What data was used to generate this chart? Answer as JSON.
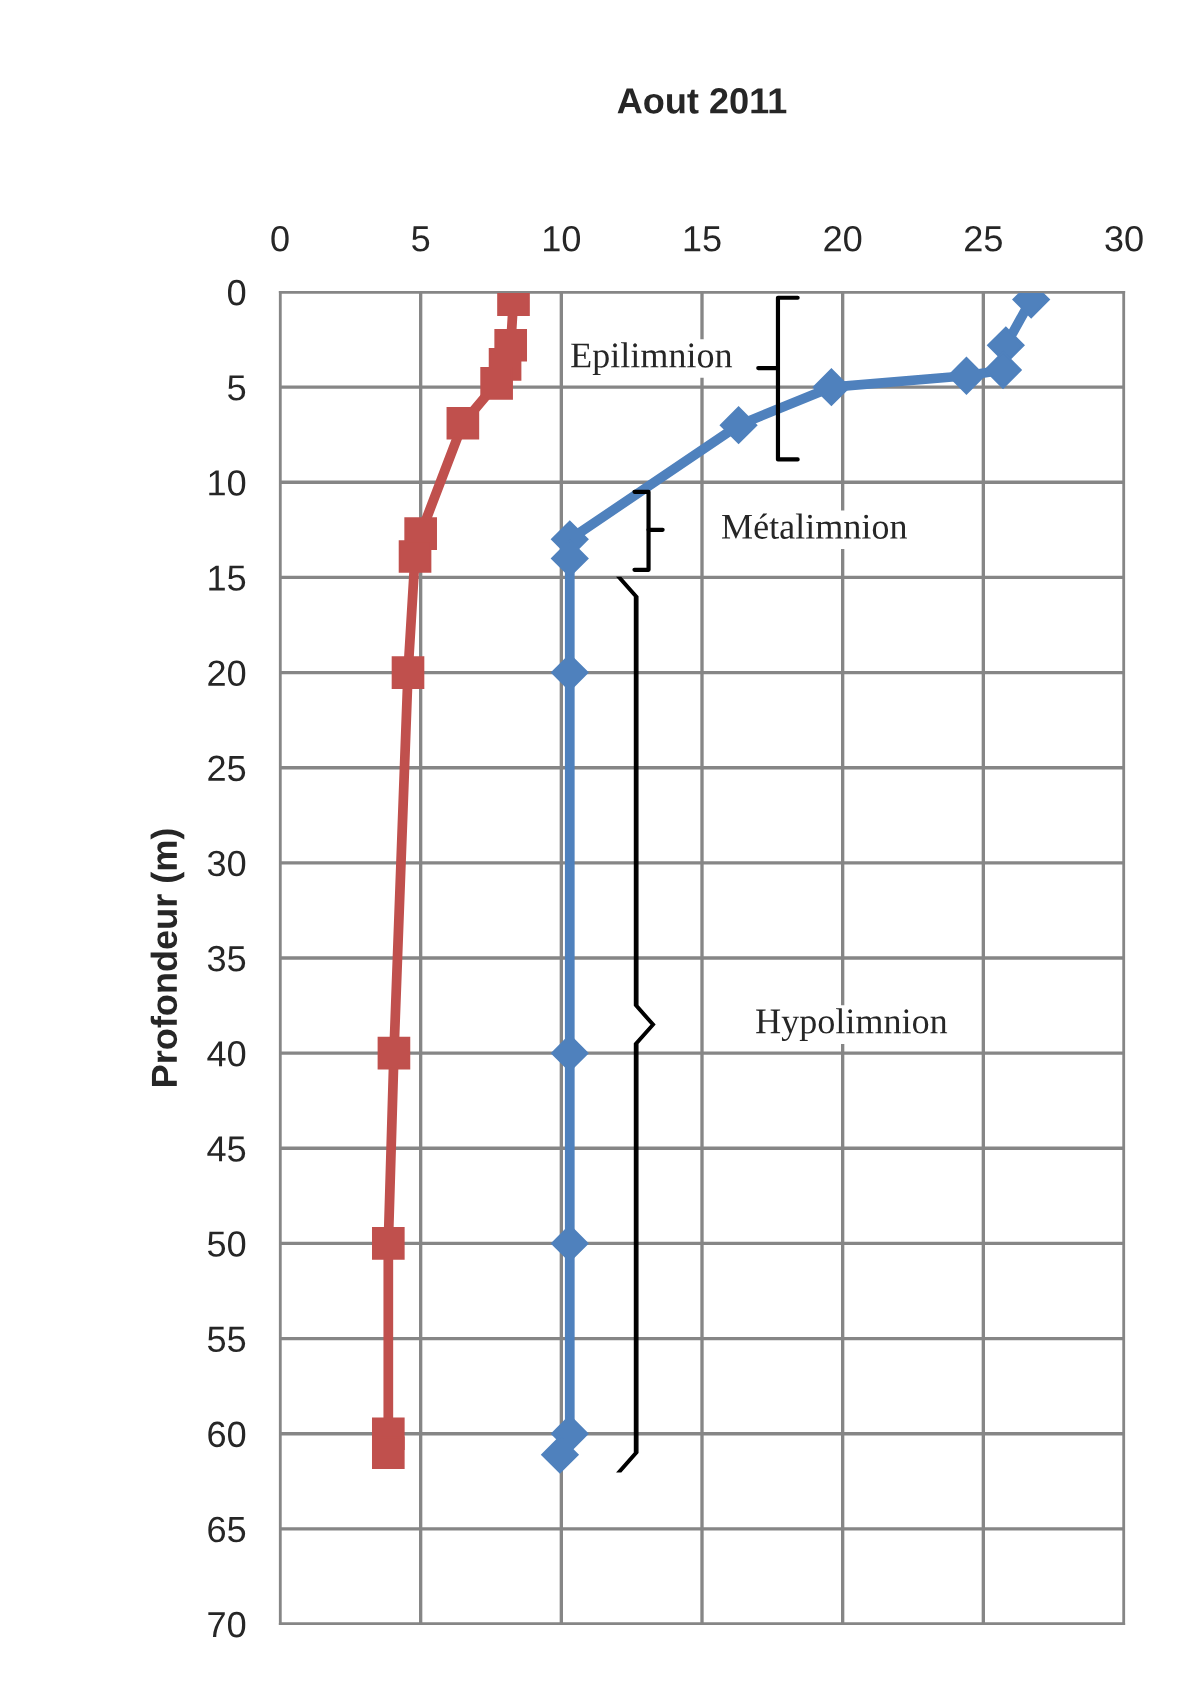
{
  "chart_data": {
    "type": "line",
    "title": "Aout 2011",
    "ylabel": "Profondeur (m)",
    "xlim": [
      0,
      30
    ],
    "xticks": [
      0,
      5,
      10,
      15,
      20,
      25,
      30
    ],
    "ylim": [
      70,
      0
    ],
    "yticks": [
      0,
      5,
      10,
      15,
      20,
      25,
      30,
      35,
      40,
      45,
      50,
      55,
      60,
      65,
      70
    ],
    "grid": true,
    "legend": false,
    "line_style": "solid",
    "series": [
      {
        "color": "#c0504d",
        "marker": "square",
        "x": [
          8.3,
          8.2,
          8.0,
          7.7,
          6.5,
          5.0,
          4.8,
          4.55,
          4.05,
          3.85,
          3.85,
          3.85
        ],
        "values": [
          0.4,
          2.8,
          3.8,
          4.8,
          6.9,
          12.7,
          13.9,
          20,
          40,
          50,
          60,
          61
        ]
      },
      {
        "color": "#4f81bd",
        "marker": "diamond",
        "x": [
          26.7,
          25.8,
          25.7,
          24.4,
          19.6,
          16.3,
          10.3,
          10.3,
          10.3,
          10.3,
          10.3,
          10.3,
          9.95
        ],
        "values": [
          0.4,
          2.8,
          4.1,
          4.4,
          5.0,
          7.0,
          13.0,
          14.0,
          20,
          40,
          50,
          60,
          61.1
        ]
      }
    ],
    "annotations": [
      "Epilimnion",
      "Métalimnion",
      "Hypolimnion"
    ]
  }
}
